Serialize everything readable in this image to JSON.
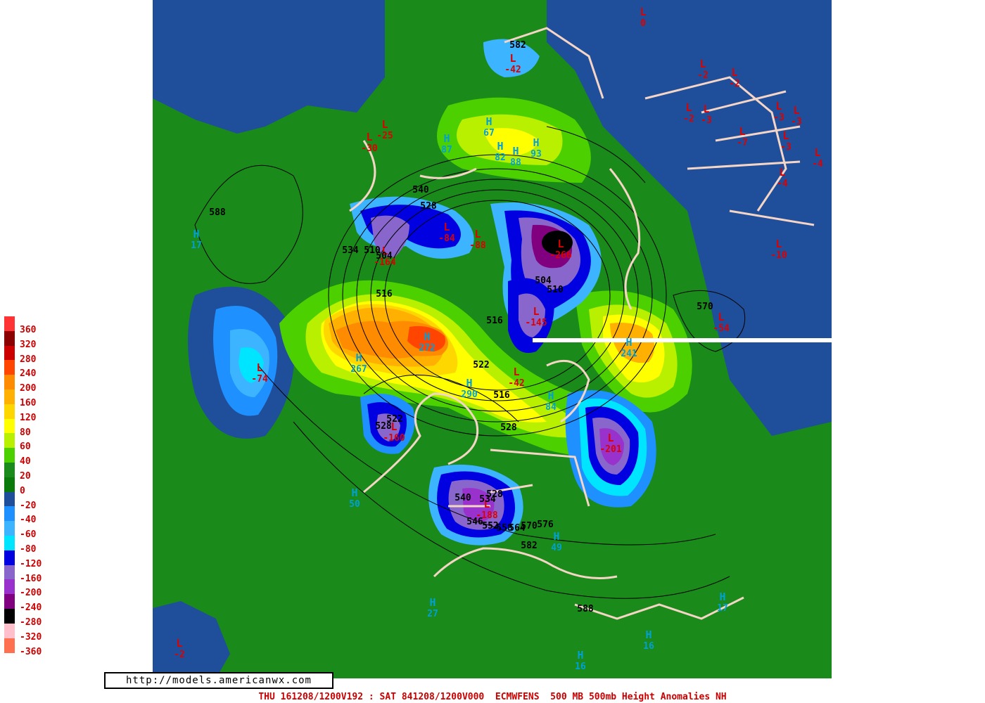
{
  "legend": {
    "labels": [
      "360",
      "320",
      "280",
      "240",
      "200",
      "160",
      "120",
      "80",
      "60",
      "40",
      "20",
      "0",
      "-20",
      "-40",
      "-60",
      "-80",
      "-120",
      "-160",
      "-200",
      "-240",
      "-280",
      "-320",
      "-360"
    ],
    "colors": [
      "#ff3333",
      "#8b0000",
      "#cc0000",
      "#ff4500",
      "#ff8c00",
      "#ffb000",
      "#ffd700",
      "#ffff00",
      "#b8f000",
      "#4cd000",
      "#1a8a1a",
      "#0a7a0a",
      "#1f4f9a",
      "#1e90ff",
      "#3cb4ff",
      "#00e5ff",
      "#0000e0",
      "#8866cc",
      "#9932cc",
      "#800080",
      "#000000",
      "#ffc0cb",
      "#ff7050"
    ]
  },
  "watermark": "http://models.americanwx.com",
  "footer": "THU 161208/1200V192 : SAT 841208/1200V000  ECMWFENS  500 MB 500mb Height Anomalies NH",
  "colors": {
    "ocean_deep": "#1f4f9a",
    "land_zero": "#1a8a1a",
    "coastline": "#f5d5c5",
    "low_label": "#dd0000",
    "high_label": "#00a0d8",
    "contour": "#000000"
  },
  "systems": [
    {
      "type": "L",
      "value": "0"
    },
    {
      "type": "L",
      "value": "-42"
    },
    {
      "type": "L",
      "value": "-2"
    },
    {
      "type": "L",
      "value": "-2"
    },
    {
      "type": "L",
      "value": "-2"
    },
    {
      "type": "L",
      "value": "-3"
    },
    {
      "type": "L",
      "value": "-3"
    },
    {
      "type": "L",
      "value": "-3"
    },
    {
      "type": "L",
      "value": "-7"
    },
    {
      "type": "L",
      "value": "-3"
    },
    {
      "type": "L",
      "value": "-4"
    },
    {
      "type": "L",
      "value": "-4"
    },
    {
      "type": "L",
      "value": "-10"
    },
    {
      "type": "L",
      "value": "-25"
    },
    {
      "type": "L",
      "value": "-30"
    },
    {
      "type": "L",
      "value": "-84"
    },
    {
      "type": "L",
      "value": "-88"
    },
    {
      "type": "L",
      "value": "-164"
    },
    {
      "type": "L",
      "value": "-266"
    },
    {
      "type": "L",
      "value": "-145"
    },
    {
      "type": "L",
      "value": "-54"
    },
    {
      "type": "L",
      "value": "-74"
    },
    {
      "type": "L",
      "value": "-160"
    },
    {
      "type": "L",
      "value": "-42"
    },
    {
      "type": "L",
      "value": "-201"
    },
    {
      "type": "L",
      "value": "-188"
    },
    {
      "type": "L",
      "value": "-2"
    },
    {
      "type": "H",
      "value": "17"
    },
    {
      "type": "H",
      "value": "67"
    },
    {
      "type": "H",
      "value": "87"
    },
    {
      "type": "H",
      "value": "82"
    },
    {
      "type": "H",
      "value": "88"
    },
    {
      "type": "H",
      "value": "93"
    },
    {
      "type": "H",
      "value": "272"
    },
    {
      "type": "H",
      "value": "267"
    },
    {
      "type": "H",
      "value": "290"
    },
    {
      "type": "H",
      "value": "84"
    },
    {
      "type": "H",
      "value": "241"
    },
    {
      "type": "H",
      "value": "50"
    },
    {
      "type": "H",
      "value": "49"
    },
    {
      "type": "H",
      "value": "27"
    },
    {
      "type": "H",
      "value": "17"
    },
    {
      "type": "H",
      "value": "16"
    },
    {
      "type": "H",
      "value": "16"
    }
  ],
  "contour_labels": [
    "582",
    "588",
    "540",
    "528",
    "534",
    "510",
    "504",
    "516",
    "504",
    "510",
    "516",
    "522",
    "516",
    "528",
    "522",
    "528",
    "570",
    "582",
    "588",
    "540",
    "546",
    "552",
    "558",
    "564",
    "570",
    "576",
    "528",
    "534"
  ]
}
